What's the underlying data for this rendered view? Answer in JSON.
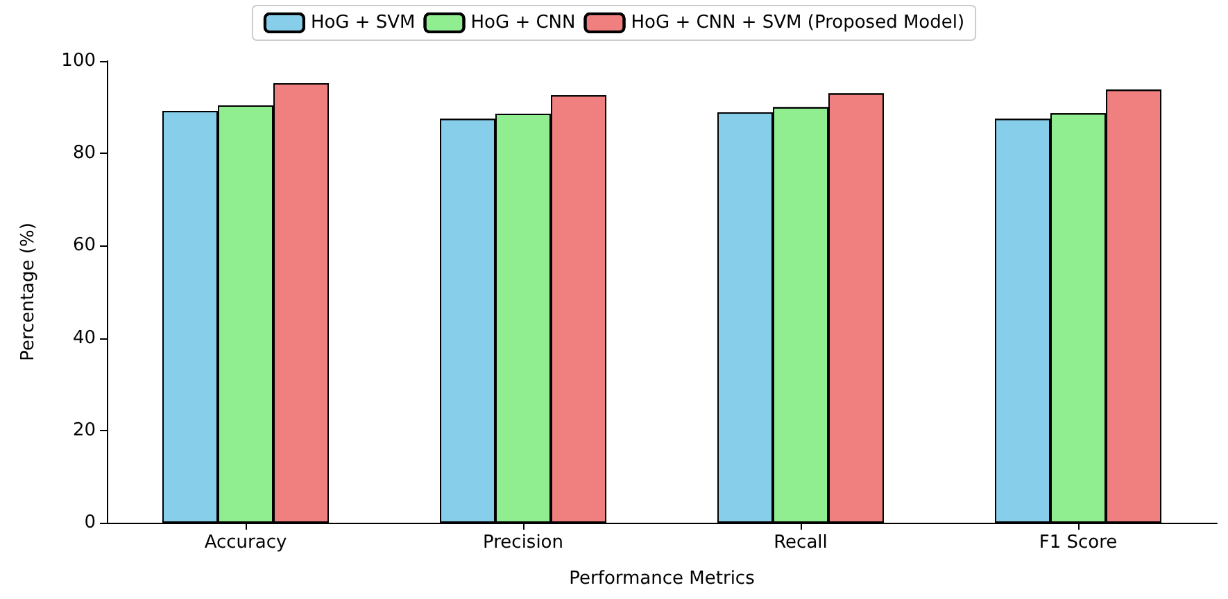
{
  "chart_data": {
    "type": "bar",
    "xlabel": "Performance Metrics",
    "ylabel": "Percentage (%)",
    "categories": [
      "Accuracy",
      "Precision",
      "Recall",
      "F1 Score"
    ],
    "series": [
      {
        "name": "HoG + SVM",
        "color": "#87ceeb",
        "values": [
          89.2,
          87.5,
          88.9,
          87.5
        ]
      },
      {
        "name": "HoG + CNN",
        "color": "#90ee90",
        "values": [
          90.4,
          88.6,
          90,
          88.7
        ]
      },
      {
        "name": "HoG + CNN + SVM (Proposed Model)",
        "color": "#f08080",
        "values": [
          95.2,
          92.6,
          93,
          93.8
        ]
      }
    ],
    "ylim": [
      0,
      100
    ],
    "yticks": [
      0,
      20,
      40,
      60,
      80,
      100
    ],
    "grid": false,
    "legend": "top"
  }
}
